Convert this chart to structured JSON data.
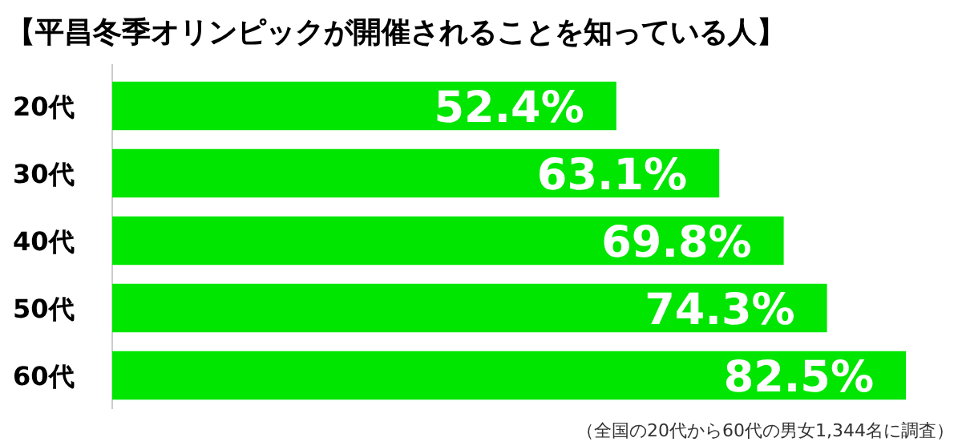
{
  "chart_data": {
    "type": "bar",
    "orientation": "horizontal",
    "title": "【平昌冬季オリンピックが開催されることを知っている人】",
    "categories": [
      "20代",
      "30代",
      "40代",
      "50代",
      "60代"
    ],
    "values": [
      52.4,
      63.1,
      69.8,
      74.3,
      82.5
    ],
    "value_labels": [
      "52.4%",
      "63.1%",
      "69.8%",
      "74.3%",
      "82.5%"
    ],
    "color": "#00e600",
    "annotations": [
      "（全国の20代から60代の男女1,344名に調査）"
    ]
  }
}
